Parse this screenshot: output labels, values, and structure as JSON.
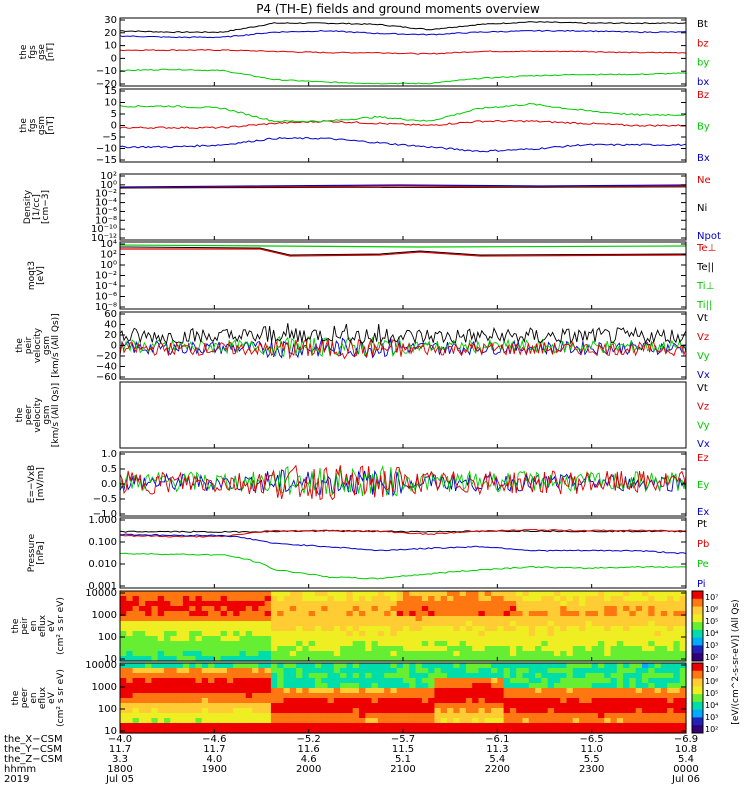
{
  "chart_data": {
    "type": "line",
    "title": "P4 (TH-E) fields and ground moments overview",
    "panels": [
      {
        "key": "fgs_gse",
        "ylabel": [
          "the",
          "fgs",
          "gse",
          "[nT]"
        ],
        "ticks": [
          "30",
          "20",
          "10",
          "0",
          "−10",
          "−20"
        ],
        "ylim": [
          -22,
          31
        ],
        "series": [
          {
            "name": "Bt",
            "color": "#000000",
            "values": [
              21,
              20,
              20,
              27,
              27,
              26,
              22,
              26,
              28,
              27,
              27,
              27
            ]
          },
          {
            "name": "bz",
            "color": "#dd0000",
            "values": [
              6,
              6,
              6,
              5,
              4,
              4,
              3,
              5,
              5,
              5,
              4,
              4
            ]
          },
          {
            "name": "by",
            "color": "#00cc00",
            "values": [
              -10,
              -9,
              -10,
              -17,
              -19,
              -20,
              -20,
              -16,
              -14,
              -13,
              -13,
              -12
            ]
          },
          {
            "name": "bx",
            "color": "#0000cc",
            "values": [
              17,
              16,
              16,
              20,
              21,
              19,
              18,
              20,
              21,
              21,
              20,
              20
            ]
          }
        ]
      },
      {
        "key": "fgs_gsm",
        "ylabel": [
          "the",
          "fgs",
          "gsm",
          "[nT]"
        ],
        "ticks": [
          "15",
          "10",
          "5",
          "0",
          "−5",
          "−10",
          "−15"
        ],
        "ylim": [
          -18,
          16
        ],
        "series": [
          {
            "name": "Bz",
            "color": "#dd0000",
            "values": [
              -2,
              -2,
              -2,
              0,
              1,
              0,
              -1,
              1,
              1,
              0,
              -1,
              -1
            ]
          },
          {
            "name": "By",
            "color": "#00cc00",
            "values": [
              8,
              8,
              7,
              1,
              1,
              3,
              1,
              7,
              9,
              6,
              4,
              4
            ]
          },
          {
            "name": "Bx",
            "color": "#0000cc",
            "values": [
              -11,
              -11,
              -10,
              -7,
              -7,
              -9,
              -11,
              -13,
              -12,
              -10,
              -10,
              -10
            ]
          }
        ]
      },
      {
        "key": "density",
        "ylabel": [
          "Density",
          "[1/cc]",
          "[cm−3]"
        ],
        "ticks": [
          "10²",
          "10⁰",
          "10⁻²",
          "10⁻⁴",
          "10⁻⁶",
          "10⁻⁸",
          "10⁻¹⁰",
          "10⁻¹²"
        ],
        "series": [
          {
            "name": "Ne",
            "color": "#dd0000"
          },
          {
            "name": "Ni",
            "color": "#000000"
          },
          {
            "name": "Npot",
            "color": "#0000cc"
          }
        ]
      },
      {
        "key": "temperature",
        "ylabel": [
          "moqt3",
          "[eV]"
        ],
        "ticks": [
          "10⁴",
          "10²",
          "10⁰",
          "10⁻²",
          "10⁻⁴",
          "10⁻⁶",
          "10⁻⁸"
        ],
        "series": [
          {
            "name": "Te⊥",
            "color": "#dd0000"
          },
          {
            "name": "Te||",
            "color": "#000000"
          },
          {
            "name": "Ti⊥",
            "color": "#00cc00"
          },
          {
            "name": "Ti||",
            "color": "#00cc00"
          }
        ]
      },
      {
        "key": "peir_velocity",
        "ylabel": [
          "the",
          "peir",
          "velocity",
          "gsm",
          "[km/s (All Qs)]"
        ],
        "ticks": [
          "60",
          "40",
          "20",
          "0",
          "−20",
          "−40",
          "−60"
        ],
        "ylim": [
          -60,
          60
        ],
        "series": [
          {
            "name": "Vt",
            "color": "#000000"
          },
          {
            "name": "Vz",
            "color": "#dd0000"
          },
          {
            "name": "Vy",
            "color": "#00cc00"
          },
          {
            "name": "Vx",
            "color": "#0000cc"
          }
        ]
      },
      {
        "key": "peer_velocity",
        "ylabel": [
          "the",
          "peer",
          "velocity",
          "gsm",
          "[km/s (All Qs)]"
        ],
        "ticks": [],
        "series": [
          {
            "name": "Vt",
            "color": "#000000"
          },
          {
            "name": "Vz",
            "color": "#dd0000"
          },
          {
            "name": "Vy",
            "color": "#00cc00"
          },
          {
            "name": "Vx",
            "color": "#0000cc"
          }
        ]
      },
      {
        "key": "efield",
        "ylabel": [
          "E=−VxB",
          "[mV/m]"
        ],
        "ticks": [
          "1.0",
          "0.5",
          "0.0",
          "−0.5",
          "−1.0"
        ],
        "ylim": [
          -1.1,
          1.1
        ],
        "series": [
          {
            "name": "Ez",
            "color": "#dd0000"
          },
          {
            "name": "Ey",
            "color": "#00cc00"
          },
          {
            "name": "Ex",
            "color": "#0000cc"
          }
        ]
      },
      {
        "key": "pressure",
        "ylabel": [
          "Pressure",
          "[nPa]"
        ],
        "ticks": [
          "1.000",
          "0.100",
          "0.010",
          "0.001"
        ],
        "ylim_log": [
          -3,
          0
        ],
        "series": [
          {
            "name": "Pt",
            "color": "#000000",
            "values": [
              0.26,
              0.26,
              0.25,
              0.27,
              0.28,
              0.27,
              0.26,
              0.27,
              0.28,
              0.27,
              0.27,
              0.27
            ]
          },
          {
            "name": "Pb",
            "color": "#dd0000",
            "values": [
              0.18,
              0.16,
              0.16,
              0.28,
              0.29,
              0.27,
              0.2,
              0.27,
              0.31,
              0.29,
              0.29,
              0.29
            ]
          },
          {
            "name": "Pe",
            "color": "#00cc00",
            "values": [
              0.03,
              0.028,
              0.026,
              0.006,
              0.003,
              0.0025,
              0.004,
              0.006,
              0.008,
              0.007,
              0.008,
              0.008
            ]
          },
          {
            "name": "Pi",
            "color": "#0000cc",
            "values": [
              0.2,
              0.18,
              0.18,
              0.08,
              0.06,
              0.04,
              0.05,
              0.06,
              0.04,
              0.04,
              0.04,
              0.03
            ]
          }
        ]
      },
      {
        "key": "peir_spec",
        "type": "heatmap",
        "ylabel": [
          "the",
          "peir",
          "en",
          "eflux",
          "eV",
          "(cm² s sr eV)"
        ],
        "ticks": [
          "10000",
          "1000",
          "100",
          "10"
        ]
      },
      {
        "key": "peer_spec",
        "type": "heatmap",
        "ylabel": [
          "the",
          "peer",
          "en",
          "eflux",
          "eV",
          "(cm² s sr eV)"
        ],
        "ticks": [
          "10000",
          "1000",
          "100",
          "10"
        ]
      }
    ],
    "colorbar": {
      "ticks_top": [
        "10⁷",
        "10⁶",
        "10⁵",
        "10⁴",
        "10³",
        "10²"
      ],
      "ticks_bottom": [
        "10⁷",
        "10⁶",
        "10⁵",
        "10⁴",
        "10³",
        "10²"
      ],
      "label": "[eV/(cm^2-s-sr-eV)] (All Qs)"
    },
    "x_axis": {
      "rows": [
        {
          "label": "the_X−CSM",
          "values": [
            "−4.0",
            "−4.6",
            "−5.2",
            "−5.7",
            "−6.1",
            "−6.5",
            "−6.9"
          ]
        },
        {
          "label": "the_Y−CSM",
          "values": [
            "11.7",
            "11.7",
            "11.6",
            "11.5",
            "11.3",
            "11.0",
            "10.8"
          ]
        },
        {
          "label": "the_Z−CSM",
          "values": [
            "3.3",
            "4.0",
            "4.6",
            "5.1",
            "5.4",
            "5.5",
            "5.4"
          ]
        },
        {
          "label": "hhmm",
          "values": [
            "1800",
            "1900",
            "2000",
            "2100",
            "2200",
            "2300",
            "0000"
          ]
        },
        {
          "label": "2019",
          "values": [
            "Jul 05",
            "",
            "",
            "",
            "",
            "",
            "Jul 06"
          ]
        }
      ]
    }
  }
}
